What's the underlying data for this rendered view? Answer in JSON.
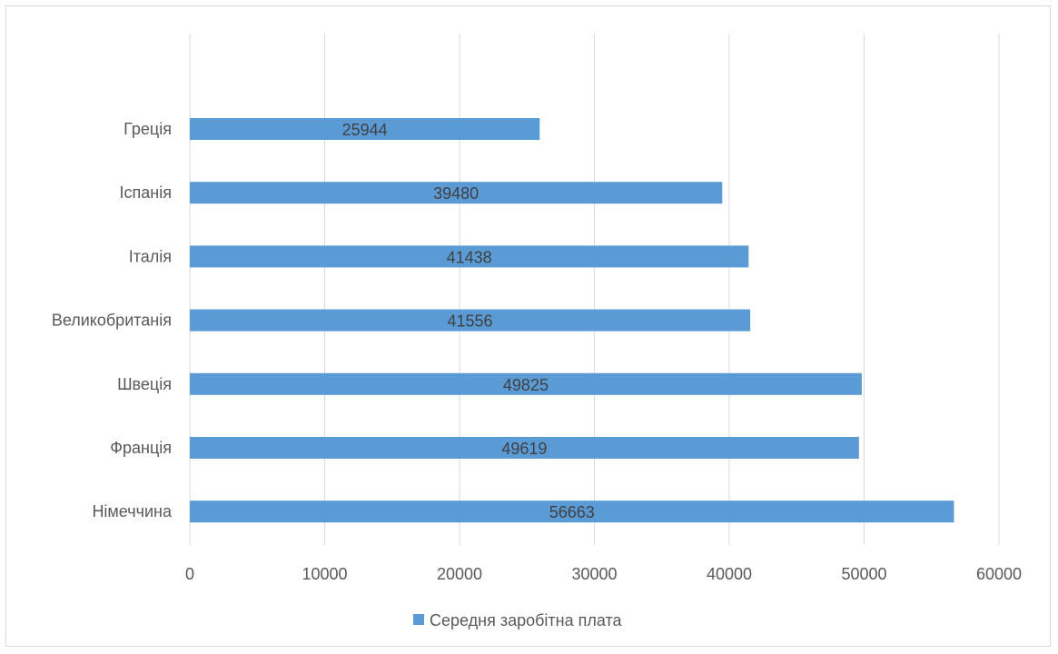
{
  "chart_data": {
    "type": "bar",
    "orientation": "horizontal",
    "categories": [
      "Греція",
      "Іспанія",
      "Італія",
      "Великобританія",
      "Швеція",
      "Франція",
      "Німеччина"
    ],
    "series": [
      {
        "name": "Середня заробітна плата",
        "values": [
          25944,
          39480,
          41438,
          41556,
          49825,
          49619,
          56663
        ],
        "color": "#5b9bd5"
      }
    ],
    "xlim": [
      0,
      60000
    ],
    "x_ticks": [
      "0",
      "10000",
      "20000",
      "30000",
      "40000",
      "50000",
      "60000"
    ],
    "grid": true,
    "data_labels": true,
    "legend_position": "bottom"
  }
}
